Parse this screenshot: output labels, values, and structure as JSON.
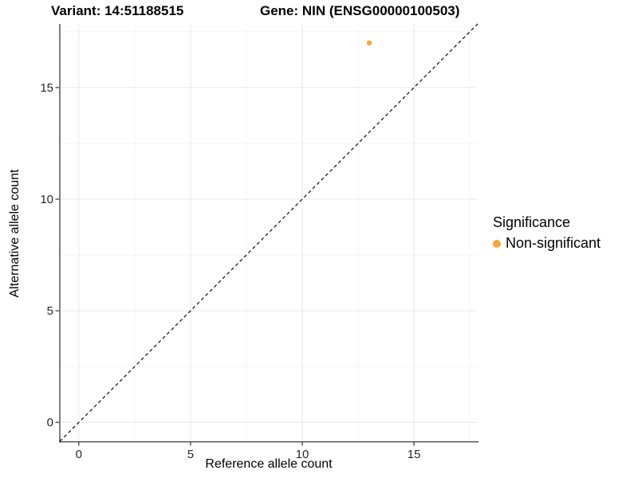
{
  "titles": {
    "variant": "Variant: 14:51188515",
    "gene": "Gene: NIN (ENSG00000100503)"
  },
  "chart_data": {
    "type": "scatter",
    "xlabel": "Reference allele count",
    "ylabel": "Alternative allele count",
    "xlim": [
      -0.85,
      17.85
    ],
    "ylim": [
      -0.85,
      17.85
    ],
    "x_ticks": [
      0,
      5,
      10,
      15
    ],
    "y_ticks": [
      0,
      5,
      10,
      15
    ],
    "x_minor_ticks": [
      2.5,
      7.5,
      12.5,
      17.5
    ],
    "y_minor_ticks": [
      2.5,
      7.5,
      12.5,
      17.5
    ],
    "grid": true,
    "points": [
      {
        "x": 13,
        "y": 17,
        "series": "Non-significant"
      }
    ],
    "reference_line": {
      "slope": 1,
      "intercept": 0,
      "style": "dashed",
      "color": "#111111"
    },
    "legend": {
      "title": "Significance",
      "position": "right",
      "items": [
        {
          "label": "Non-significant",
          "color": "#FAA43A"
        }
      ]
    },
    "colors": {
      "point": "#FAA43A",
      "grid_major": "#E9E9E9",
      "grid_minor": "#F2F2F2",
      "axis_line": "#3A3A3A",
      "tick": "#333333",
      "tick_label": "#262626"
    }
  }
}
